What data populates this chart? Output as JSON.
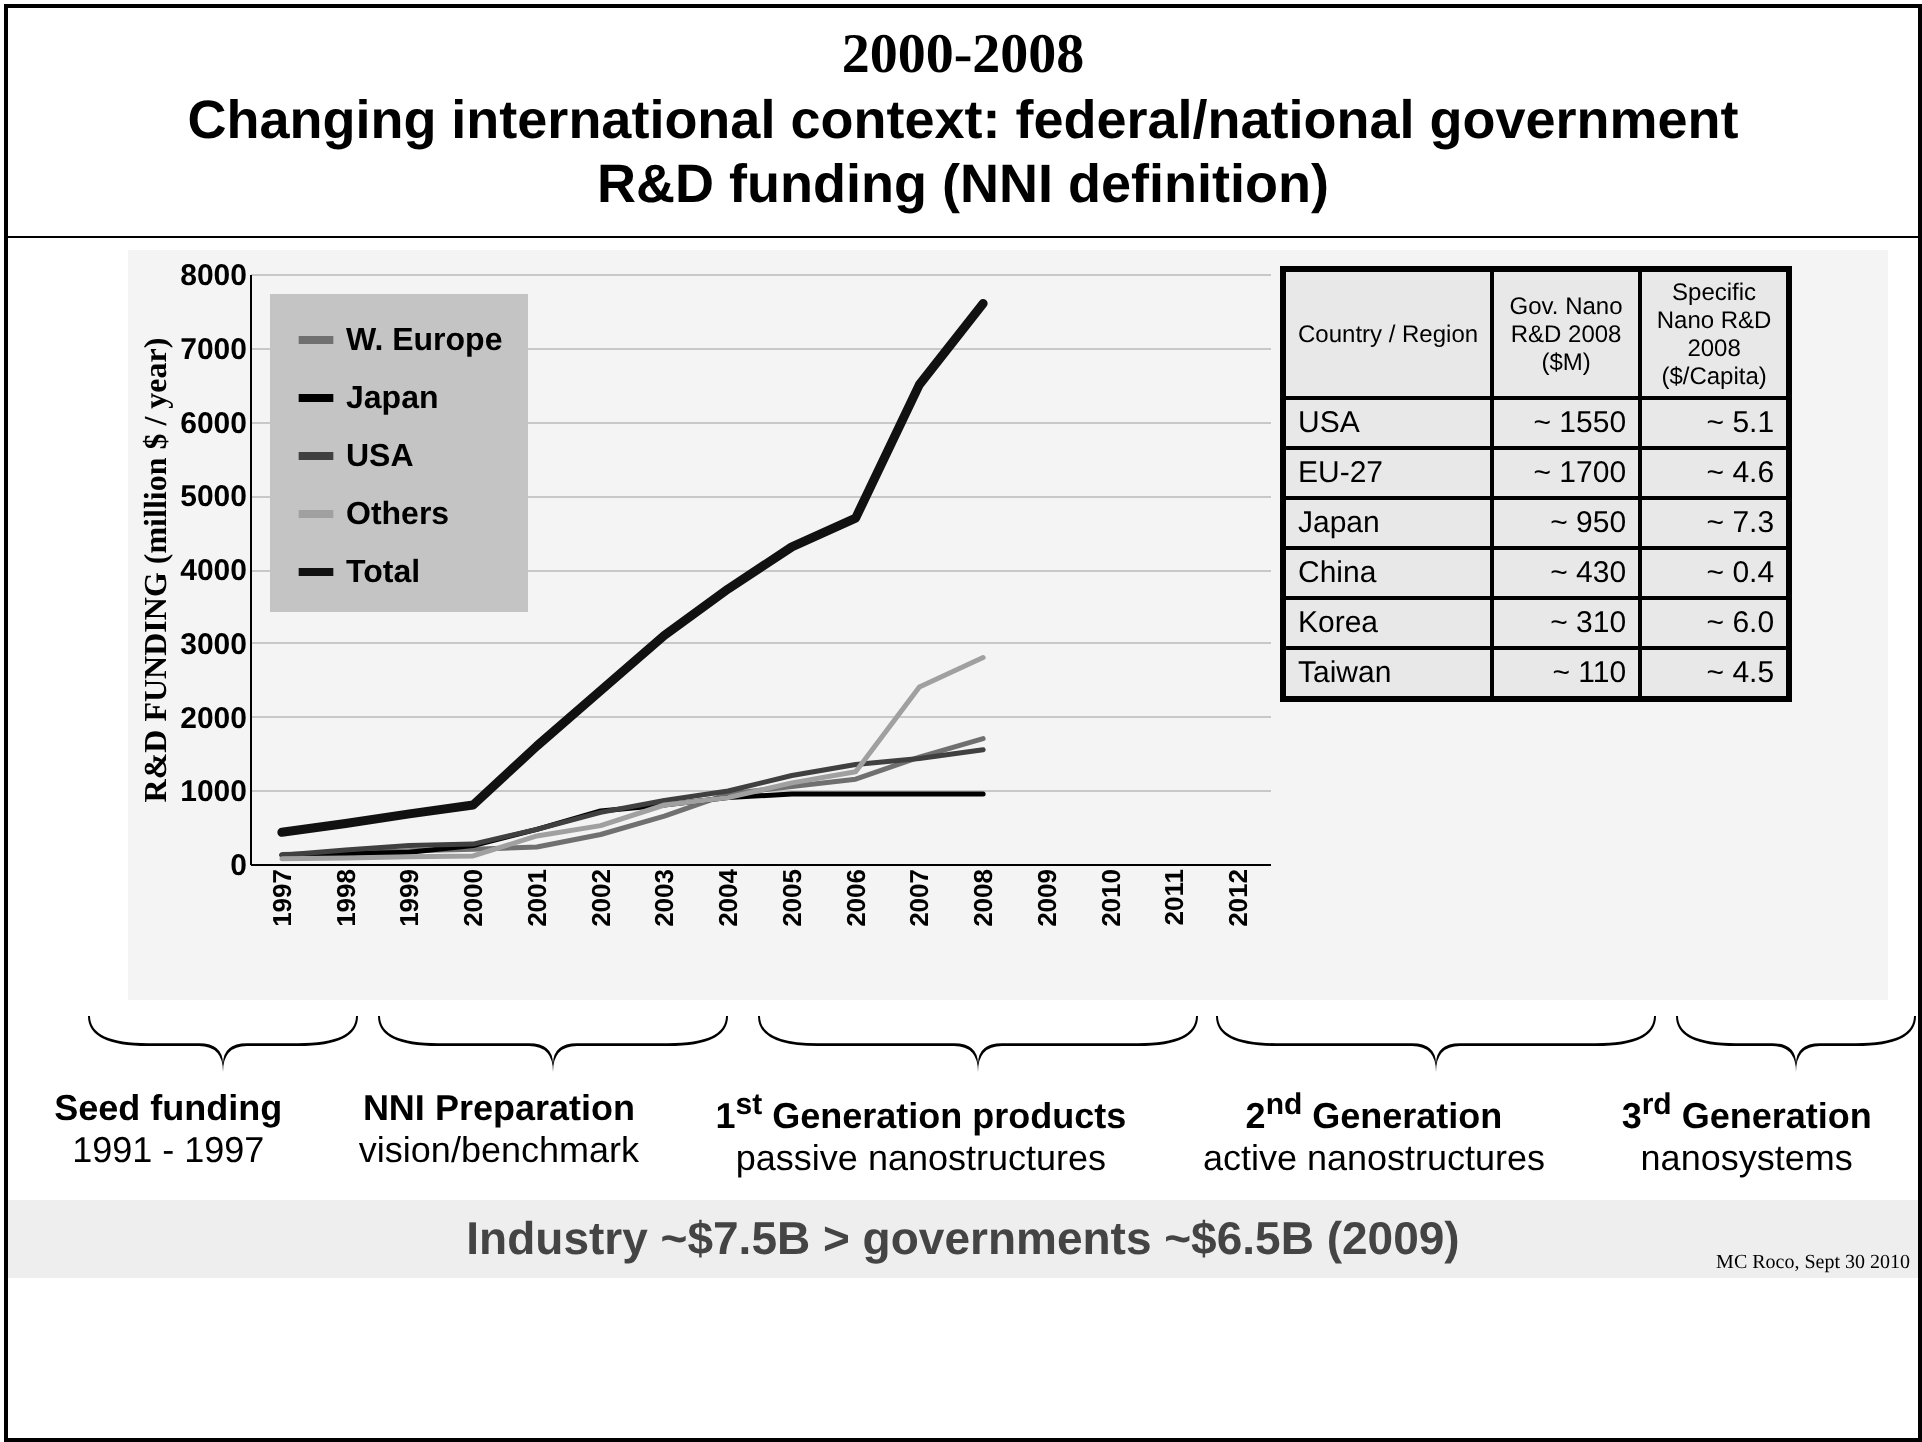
{
  "chart_data": {
    "type": "line",
    "title": "2000-2008",
    "subtitle": "Changing international context: federal/national government R&D funding (NNI definition)",
    "ylabel": "R&D FUNDING (million $ / year)",
    "categories": [
      "1997",
      "1998",
      "1999",
      "2000",
      "2001",
      "2002",
      "2003",
      "2004",
      "2005",
      "2006",
      "2007",
      "2008",
      "2009",
      "2010",
      "2011",
      "2012"
    ],
    "series": [
      {
        "name": "W. Europe",
        "color": "#707070",
        "values": [
          130,
          150,
          180,
          200,
          230,
          400,
          650,
          950,
          1050,
          1150,
          1450,
          1700,
          null,
          null,
          null,
          null
        ]
      },
      {
        "name": "Japan",
        "color": "#000000",
        "values": [
          120,
          140,
          160,
          250,
          470,
          720,
          800,
          900,
          950,
          950,
          950,
          950,
          null,
          null,
          null,
          null
        ]
      },
      {
        "name": "USA",
        "color": "#404040",
        "values": [
          120,
          190,
          250,
          270,
          470,
          700,
          860,
          990,
          1200,
          1350,
          1430,
          1550,
          null,
          null,
          null,
          null
        ]
      },
      {
        "name": "Others",
        "color": "#a0a0a0",
        "values": [
          70,
          80,
          100,
          110,
          380,
          520,
          800,
          900,
          1100,
          1250,
          2400,
          2800,
          null,
          null,
          null,
          null
        ]
      },
      {
        "name": "Total",
        "color": "#111111",
        "values": [
          430,
          550,
          680,
          800,
          1600,
          2350,
          3100,
          3730,
          4300,
          4690,
          6500,
          7600,
          null,
          null,
          null,
          null
        ]
      }
    ],
    "ylim": [
      0,
      8000
    ],
    "yticks": [
      0,
      1000,
      2000,
      3000,
      4000,
      5000,
      6000,
      7000,
      8000
    ],
    "grid": "y",
    "legend": "top left",
    "annotations": [
      "Seed funding",
      "1991 - 1997",
      "NNI Preparation",
      "vision/benchmark",
      "1$^{st}$ Generation products",
      "passive nanostructures",
      "2$^{nd}$ Generation",
      "active nanostructures",
      "3$^{rd}$ Generation",
      "nanosystems",
      "Industry ~$7.5B >  governments  ~$6.5B  (2009)",
      "MC Roco, Sept 30 2010",
      "Country / Region",
      "Gov. Nano R&D 2008 ($M)",
      "Specific Nano R&D 2008 ($/Capita)",
      "USA",
      "~ 1550",
      "~ 5.1",
      "EU-27",
      "~ 1700",
      "~ 4.6",
      "Japan",
      "~ 950",
      "~ 7.3",
      "China",
      "~ 430",
      "~ 0.4",
      "Korea",
      "~ 310",
      "~ 6.0",
      "Taiwan",
      "~ 110",
      "~ 4.5"
    ]
  }
}
